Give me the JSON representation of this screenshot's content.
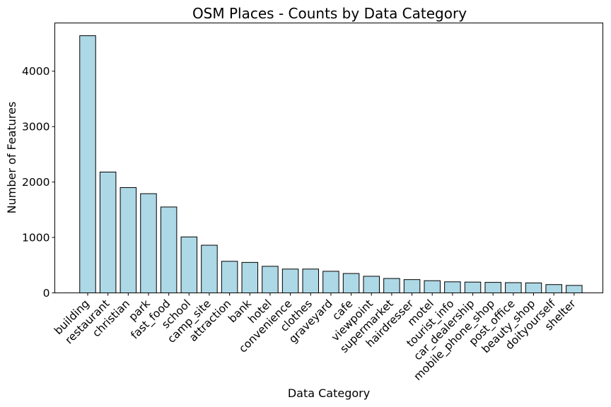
{
  "chart_data": {
    "type": "bar",
    "title": "OSM Places - Counts by Data Category",
    "xlabel": "Data Category",
    "ylabel": "Number of Features",
    "categories": [
      "building",
      "restaurant",
      "christian",
      "park",
      "fast_food",
      "school",
      "camp_site",
      "attraction",
      "bank",
      "hotel",
      "convenience",
      "clothes",
      "graveyard",
      "cafe",
      "viewpoint",
      "supermarket",
      "hairdresser",
      "motel",
      "tourist_info",
      "car_dealership",
      "mobile_phone_shop",
      "post_office",
      "beauty_shop",
      "doityourself",
      "shelter"
    ],
    "values": [
      4640,
      2180,
      1900,
      1790,
      1550,
      1010,
      860,
      570,
      550,
      480,
      430,
      430,
      390,
      350,
      300,
      260,
      240,
      220,
      200,
      195,
      190,
      185,
      180,
      150,
      135
    ],
    "ylim": [
      0,
      4870
    ],
    "yticks": [
      0,
      1000,
      2000,
      3000,
      4000
    ],
    "grid": false,
    "colors": {
      "bar_fill": "#add8e6",
      "bar_edge": "#000000"
    }
  }
}
